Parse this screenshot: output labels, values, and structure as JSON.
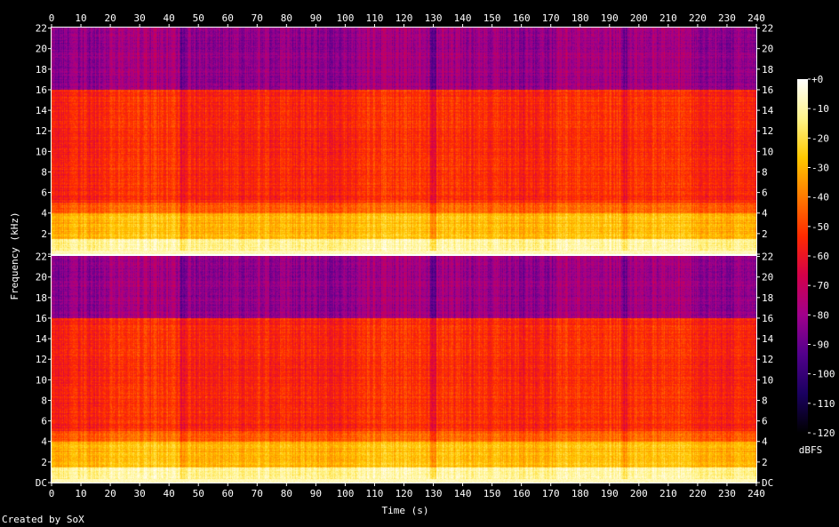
{
  "chart_data": {
    "type": "heatmap",
    "title": "",
    "xlabel": "Time (s)",
    "ylabel": "Frequency (kHz)",
    "x_range": [
      0,
      240
    ],
    "x_ticks": [
      "0",
      "10",
      "20",
      "30",
      "40",
      "50",
      "60",
      "70",
      "80",
      "90",
      "100",
      "110",
      "120",
      "130",
      "140",
      "150",
      "160",
      "170",
      "180",
      "190",
      "200",
      "210",
      "220",
      "230",
      "240"
    ],
    "y_range_khz": [
      0,
      22.05
    ],
    "y_ticks": [
      "DC",
      "2",
      "4",
      "6",
      "8",
      "10",
      "12",
      "14",
      "16",
      "18",
      "20",
      "22"
    ],
    "channels": 2,
    "colorbar": {
      "label": "dBFS",
      "range": [
        -120,
        0
      ],
      "ticks": [
        "+0",
        "-10",
        "-20",
        "-30",
        "-40",
        "-50",
        "-60",
        "-70",
        "-80",
        "-90",
        "-100",
        "-110",
        "-120"
      ],
      "colors": [
        "#000000",
        "#1a0060",
        "#52008c",
        "#a0008c",
        "#d4004a",
        "#ff2a00",
        "#ff7a00",
        "#ffc800",
        "#fff48a",
        "#ffffff"
      ]
    },
    "bands": [
      {
        "from_khz": 16,
        "to_khz": 22.05,
        "level_dbfs": -82
      },
      {
        "from_khz": 5,
        "to_khz": 16,
        "level_dbfs": -55
      },
      {
        "from_khz": 4,
        "to_khz": 5,
        "level_dbfs": -45
      },
      {
        "from_khz": 1.5,
        "to_khz": 4,
        "level_dbfs": -30
      },
      {
        "from_khz": 0,
        "to_khz": 1.5,
        "level_dbfs": -12
      }
    ],
    "segments": [
      {
        "start": 0,
        "end": 8,
        "energy": 0.5
      },
      {
        "start": 8,
        "end": 19,
        "energy": 0.55
      },
      {
        "start": 19,
        "end": 44,
        "energy": 0.8
      },
      {
        "start": 44,
        "end": 45.5,
        "energy": 0.1
      },
      {
        "start": 45.5,
        "end": 68,
        "energy": 0.6
      },
      {
        "start": 68,
        "end": 87,
        "energy": 0.62
      },
      {
        "start": 87,
        "end": 104,
        "energy": 0.55
      },
      {
        "start": 104,
        "end": 129,
        "energy": 0.82
      },
      {
        "start": 129,
        "end": 131,
        "energy": 0.15
      },
      {
        "start": 131,
        "end": 155,
        "energy": 0.7
      },
      {
        "start": 155,
        "end": 172,
        "energy": 0.55
      },
      {
        "start": 172,
        "end": 194,
        "energy": 0.8
      },
      {
        "start": 194,
        "end": 196,
        "energy": 0.3
      },
      {
        "start": 196,
        "end": 218,
        "energy": 0.8
      },
      {
        "start": 218,
        "end": 240,
        "energy": 0.55
      }
    ]
  },
  "footer": {
    "credit": "Created by SoX"
  }
}
